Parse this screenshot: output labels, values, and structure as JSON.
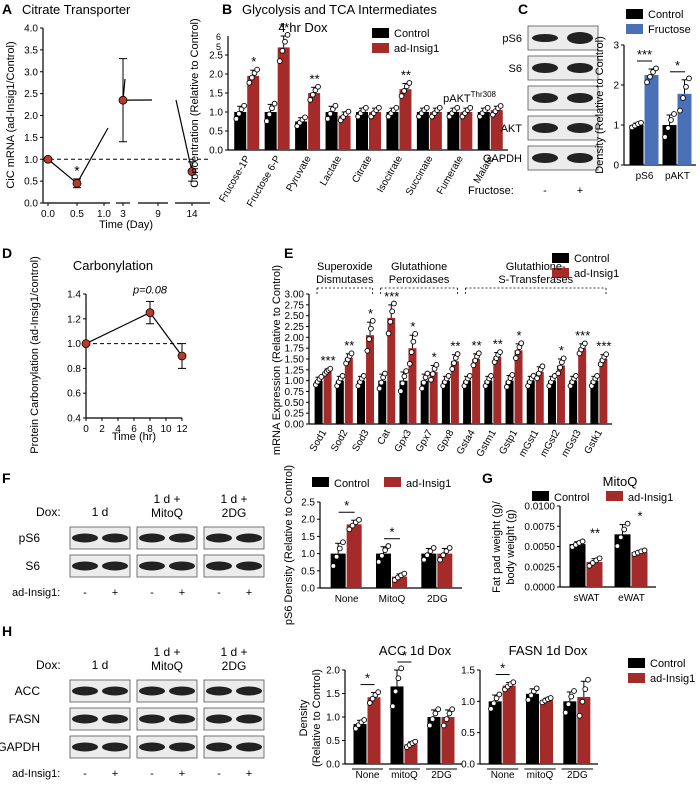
{
  "colors": {
    "control": "#000000",
    "insig": "#a52a2a",
    "fructose": "#4a70b8",
    "dot": "#ffffff",
    "pointA": "#b83a2a",
    "blotBg": "#ececec"
  },
  "chart_data": [
    {
      "panel": "A",
      "type": "line",
      "title": "Citrate Transporter",
      "xlabel": "Time (Day)",
      "ylabel": "CiC mRNA (ad-Insig1/Control)",
      "ylim": [
        0,
        4
      ],
      "yticks": [
        "0.0",
        "0.5",
        "1.0",
        "1.5",
        "2.0",
        "2.5",
        "3.0",
        "3.5",
        "4.0"
      ],
      "xticks": [
        "0.0",
        "0.5",
        "1.0",
        "3",
        "9",
        "14"
      ],
      "x": [
        "0.0",
        "0.5",
        "3",
        "14"
      ],
      "y": [
        1.0,
        0.45,
        2.35,
        0.72
      ],
      "err": [
        0,
        0.1,
        0.95,
        0.22
      ],
      "significance": [
        {
          "x": "0.5",
          "label": "*"
        }
      ],
      "reference_line": 1.0
    },
    {
      "panel": "B",
      "type": "bar",
      "title": "Glycolysis and TCA Intermediates",
      "subtitle": "4 hr Dox",
      "ylabel": "Concentration (Relative to Control)",
      "ylim": [
        0,
        2.5
      ],
      "yticks": [
        "0.0",
        "0.5",
        "1.0",
        "1.5",
        "2.0",
        "2.5"
      ],
      "break_ticks": [
        "5",
        "6"
      ],
      "categories": [
        "Frucose-1P",
        "Fructose 6-P",
        "Pyruvate",
        "Lactate",
        "Citrate",
        "Isocitrate",
        "Succinate",
        "Fumerate",
        "Malate"
      ],
      "series": [
        {
          "name": "Control",
          "values": [
            1.0,
            1.0,
            0.75,
            1.0,
            1.0,
            1.0,
            1.0,
            1.0,
            1.0
          ],
          "err": [
            0.15,
            0.2,
            0.1,
            0.15,
            0.1,
            0.1,
            0.1,
            0.1,
            0.1
          ]
        },
        {
          "name": "ad-Insig1",
          "values": [
            1.95,
            2.7,
            1.5,
            0.9,
            1.0,
            1.6,
            1.0,
            1.0,
            1.05
          ],
          "err": [
            0.15,
            0.3,
            0.15,
            0.1,
            0.1,
            0.15,
            0.1,
            0.1,
            0.1
          ]
        }
      ],
      "significance": [
        "*",
        "**",
        "**",
        "",
        "",
        "**",
        "",
        "",
        ""
      ]
    },
    {
      "panel": "C",
      "type": "bar",
      "ylabel": "Density (Relative to Control)",
      "ylim": [
        0,
        3
      ],
      "yticks": [
        "0",
        "1",
        "2",
        "3"
      ],
      "categories": [
        "pS6",
        "pAKT"
      ],
      "series": [
        {
          "name": "Control",
          "values": [
            1.0,
            1.0
          ],
          "err": [
            0.05,
            0.25
          ]
        },
        {
          "name": "Fructose",
          "values": [
            2.25,
            1.78
          ],
          "err": [
            0.15,
            0.35
          ]
        }
      ],
      "significance": [
        "***",
        "*"
      ]
    },
    {
      "panel": "D",
      "type": "line",
      "title": "Carbonylation",
      "xlabel": "Time (hr)",
      "ylabel": "Protein Carbonylation (ad-Insig1/control)",
      "xlim": [
        0,
        12
      ],
      "xticks": [
        "0",
        "2",
        "4",
        "6",
        "8",
        "10",
        "12"
      ],
      "ylim": [
        0.4,
        1.4
      ],
      "yticks": [
        "0.4",
        "0.6",
        "0.8",
        "1.0",
        "1.2",
        "1.4"
      ],
      "x": [
        0,
        8,
        12
      ],
      "y": [
        1.0,
        1.25,
        0.9
      ],
      "err": [
        0,
        0.09,
        0.1
      ],
      "annotation": "p=0.08",
      "reference_line": 1.0
    },
    {
      "panel": "E",
      "type": "bar",
      "ylabel": "mRNA Expression (Relative to Control)",
      "ylim": [
        0,
        3
      ],
      "yticks": [
        "0.00",
        "0.25",
        "0.50",
        "0.75",
        "1.00",
        "1.25",
        "1.50",
        "1.75",
        "2.00",
        "2.25",
        "2.50",
        "2.75",
        "3.00"
      ],
      "groups": [
        "Superoxide Dismutases",
        "Glutathione Peroxidases",
        "Glutathione-S-Transferases"
      ],
      "categories": [
        "Sod1",
        "Sod2",
        "Sod3",
        "Cat",
        "Gpx3",
        "Gpx7",
        "Gpx8",
        "Gsta4",
        "Gstm1",
        "Gstp1",
        "mGst1",
        "mGst2",
        "mGst3",
        "Gstk1"
      ],
      "series": [
        {
          "name": "Control",
          "values": [
            1,
            1,
            1,
            1,
            1,
            1,
            1,
            1,
            1,
            1,
            1,
            1,
            1,
            1
          ],
          "err": [
            0.08,
            0.1,
            0.1,
            0.15,
            0.2,
            0.15,
            0.1,
            0.1,
            0.1,
            0.12,
            0.1,
            0.1,
            0.1,
            0.1
          ]
        },
        {
          "name": "ad-Insig1",
          "values": [
            1.22,
            1.52,
            2.05,
            2.45,
            1.75,
            1.2,
            1.45,
            1.5,
            1.55,
            1.7,
            1.2,
            1.35,
            1.75,
            1.5
          ],
          "err": [
            0.05,
            0.1,
            0.3,
            0.3,
            0.3,
            0.15,
            0.15,
            0.12,
            0.1,
            0.15,
            0.12,
            0.15,
            0.1,
            0.1
          ]
        }
      ],
      "significance": [
        "***",
        "**",
        "*",
        "***",
        "*",
        "*",
        "**",
        "**",
        "**",
        "*",
        "",
        "*",
        "***",
        "***"
      ]
    },
    {
      "panel": "F",
      "type": "bar",
      "ylabel": "pS6 Density (Relative to Control)",
      "ylim": [
        0,
        2.5
      ],
      "yticks": [
        "0.0",
        "0.5",
        "1.0",
        "1.5",
        "2.0",
        "2.5"
      ],
      "categories": [
        "None",
        "MitoQ",
        "2DG"
      ],
      "series": [
        {
          "name": "Control",
          "values": [
            1.0,
            1.0,
            1.0
          ],
          "err": [
            0.3,
            0.2,
            0.15
          ]
        },
        {
          "name": "ad-Insig1",
          "values": [
            1.85,
            0.33,
            1.0
          ],
          "err": [
            0.12,
            0.08,
            0.15
          ]
        }
      ],
      "significance": [
        "*",
        "*",
        ""
      ]
    },
    {
      "panel": "G",
      "type": "bar",
      "title": "MitoQ",
      "ylabel": "Fat pad weight (g)/ body weight (g)",
      "ylim": [
        0,
        0.01
      ],
      "yticks": [
        "0.0000",
        "0.0025",
        "0.0050",
        "0.0075",
        "0.0100"
      ],
      "categories": [
        "sWAT",
        "eWAT"
      ],
      "series": [
        {
          "name": "Control",
          "values": [
            0.0053,
            0.0065
          ],
          "err": [
            0.0003,
            0.0012
          ]
        },
        {
          "name": "ad-Insig1",
          "values": [
            0.0031,
            0.0043
          ],
          "err": [
            0.0004,
            0.0002
          ]
        }
      ],
      "significance": [
        "**",
        "*"
      ]
    },
    {
      "panel": "H",
      "type": "bar",
      "title": "ACC 1d Dox",
      "ylabel": "Density (Relative to Control)",
      "ylim": [
        0,
        2
      ],
      "yticks": [
        "0.0",
        "0.5",
        "1.0",
        "1.5",
        "2.0"
      ],
      "categories": [
        "None",
        "mitoQ",
        "2DG"
      ],
      "series": [
        {
          "name": "Control",
          "values": [
            0.85,
            1.65,
            1.0
          ],
          "err": [
            0.08,
            0.35,
            0.15
          ]
        },
        {
          "name": "ad-Insig1",
          "values": [
            1.42,
            0.42,
            1.0
          ],
          "err": [
            0.1,
            0.05,
            0.15
          ]
        }
      ],
      "significance": [
        "*",
        "*",
        ""
      ]
    },
    {
      "panel": "H2",
      "type": "bar",
      "title": "FASN 1d Dox",
      "ylim": [
        0,
        1.5
      ],
      "yticks": [
        "0.0",
        "0.5",
        "1.0",
        "1.5"
      ],
      "categories": [
        "None",
        "mitoQ",
        "2DG"
      ],
      "series": [
        {
          "name": "Control",
          "values": [
            1.0,
            1.12,
            1.0
          ],
          "err": [
            0.1,
            0.08,
            0.15
          ]
        },
        {
          "name": "ad-Insig1",
          "values": [
            1.25,
            1.02,
            1.07
          ],
          "err": [
            0.05,
            0.03,
            0.25
          ]
        }
      ],
      "significance": [
        "*",
        "",
        ""
      ]
    }
  ],
  "legend": {
    "control": "Control",
    "insig": "ad-Insig1",
    "fructose": "Fructose"
  },
  "panel_letters": [
    "A",
    "B",
    "C",
    "D",
    "E",
    "F",
    "G",
    "H"
  ],
  "blots": {
    "C": {
      "bands": [
        "pS6",
        "S6",
        "pAKT",
        "AKT",
        "GAPDH"
      ],
      "superscript": "Thr308",
      "lane_label": "Fructose:",
      "lanes": [
        "-",
        "+"
      ]
    },
    "F": {
      "dox_label": "Dox:",
      "conditions": [
        "1 d",
        "1 d + MitoQ",
        "1 d + 2DG"
      ],
      "bands": [
        "pS6",
        "S6"
      ],
      "lane_label": "ad-Insig1:",
      "lanes": [
        "-",
        "+",
        "-",
        "+",
        "-",
        "+"
      ]
    },
    "H": {
      "dox_label": "Dox:",
      "conditions": [
        "1 d",
        "1 d + MitoQ",
        "1 d + 2DG"
      ],
      "bands": [
        "ACC",
        "FASN",
        "GAPDH"
      ],
      "lane_label": "ad-Insig1:",
      "lanes": [
        "-",
        "+",
        "-",
        "+",
        "-",
        "+"
      ]
    }
  }
}
